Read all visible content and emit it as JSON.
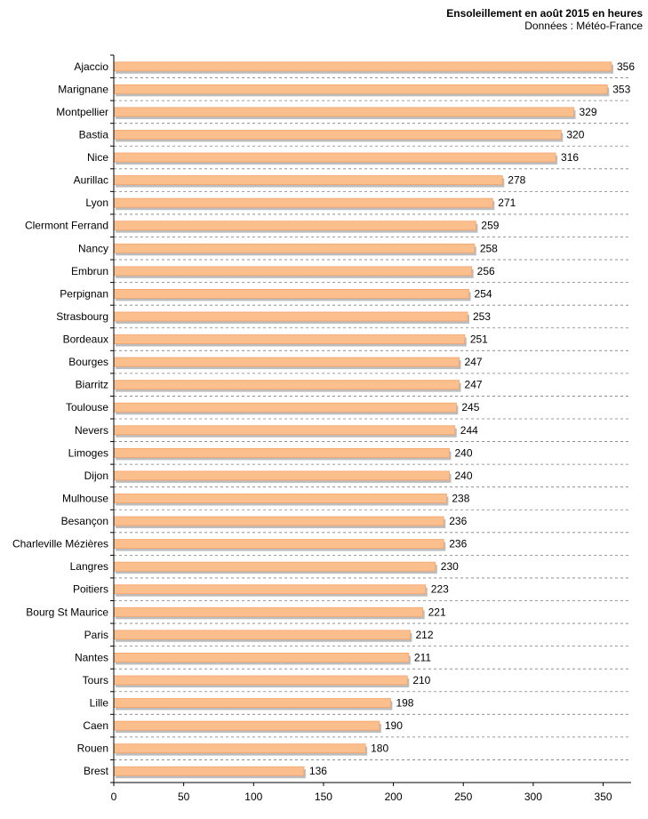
{
  "chart_data": {
    "type": "bar",
    "orientation": "horizontal",
    "title": "Ensoleillement en août 2015 en heures",
    "subtitle": "Données : Météo-France",
    "categories": [
      "Ajaccio",
      "Marignane",
      "Montpellier",
      "Bastia",
      "Nice",
      "Aurillac",
      "Lyon",
      "Clermont Ferrand",
      "Nancy",
      "Embrun",
      "Perpignan",
      "Strasbourg",
      "Bordeaux",
      "Bourges",
      "Biarritz",
      "Toulouse",
      "Nevers",
      "Limoges",
      "Dijon",
      "Mulhouse",
      "Besançon",
      "Charleville Mézières",
      "Langres",
      "Poitiers",
      "Bourg St Maurice",
      "Paris",
      "Nantes",
      "Tours",
      "Lille",
      "Caen",
      "Rouen",
      "Brest"
    ],
    "values": [
      356,
      353,
      329,
      320,
      316,
      278,
      271,
      259,
      258,
      256,
      254,
      253,
      251,
      247,
      247,
      245,
      244,
      240,
      240,
      238,
      236,
      236,
      230,
      223,
      221,
      212,
      211,
      210,
      198,
      190,
      180,
      136
    ],
    "xlim": [
      0,
      370
    ],
    "xticks": [
      0,
      50,
      100,
      150,
      200,
      250,
      300,
      350
    ],
    "xlabel": "",
    "ylabel": "",
    "bar_color": "#fbbf8e",
    "bar_border_color": "#f3a36a",
    "shadow_color": "#bdbdbd",
    "grid": "horizontal dashed"
  }
}
